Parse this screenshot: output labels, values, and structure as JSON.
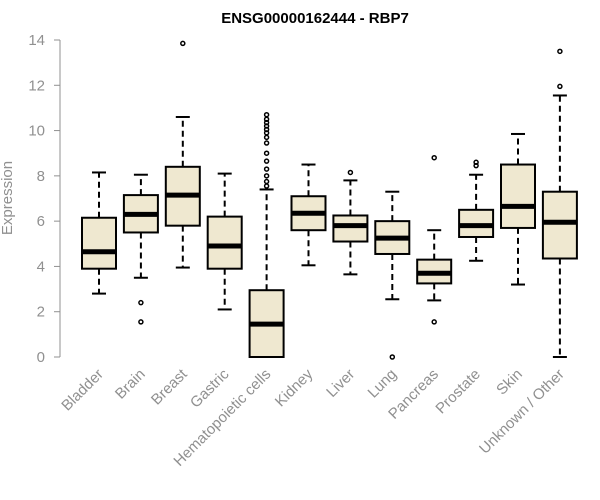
{
  "chart_data": {
    "type": "boxplot",
    "title": "ENSG00000162444 - RBP7",
    "xlabel": "",
    "ylabel": "Expression",
    "ylim": [
      0,
      14
    ],
    "yticks": [
      "0",
      "2",
      "4",
      "6",
      "8",
      "10",
      "12",
      "14"
    ],
    "grid": false,
    "box_fill": "#EFE8D0",
    "categories": [
      "Bladder",
      "Brain",
      "Breast",
      "Gastric",
      "Hematopoietic cells",
      "Kidney",
      "Liver",
      "Lung",
      "Pancreas",
      "Prostate",
      "Skin",
      "Unknown / Other"
    ],
    "boxes": [
      {
        "category": "Bladder",
        "whisker_low": 2.8,
        "q1": 3.9,
        "median": 4.65,
        "q3": 6.15,
        "whisker_high": 8.15,
        "outliers": []
      },
      {
        "category": "Brain",
        "whisker_low": 3.5,
        "q1": 5.5,
        "median": 6.3,
        "q3": 7.15,
        "whisker_high": 8.05,
        "outliers": [
          2.4,
          1.55
        ]
      },
      {
        "category": "Breast",
        "whisker_low": 3.95,
        "q1": 5.8,
        "median": 7.15,
        "q3": 8.4,
        "whisker_high": 10.6,
        "outliers": [
          13.85
        ]
      },
      {
        "category": "Gastric",
        "whisker_low": 2.1,
        "q1": 3.9,
        "median": 4.9,
        "q3": 6.2,
        "whisker_high": 8.1,
        "outliers": []
      },
      {
        "category": "Hematopoietic cells",
        "whisker_low": 0,
        "q1": 0,
        "median": 1.45,
        "q3": 2.95,
        "whisker_high": 7.4,
        "outliers": [
          7.55,
          7.75,
          8.0,
          8.3,
          8.65,
          9.0,
          9.45,
          9.7,
          9.9,
          10.05,
          10.2,
          10.35,
          10.5,
          10.7
        ]
      },
      {
        "category": "Kidney",
        "whisker_low": 4.05,
        "q1": 5.6,
        "median": 6.35,
        "q3": 7.1,
        "whisker_high": 8.5,
        "outliers": []
      },
      {
        "category": "Liver",
        "whisker_low": 3.65,
        "q1": 5.1,
        "median": 5.8,
        "q3": 6.25,
        "whisker_high": 7.8,
        "outliers": [
          8.15
        ]
      },
      {
        "category": "Lung",
        "whisker_low": 2.55,
        "q1": 4.55,
        "median": 5.25,
        "q3": 6.0,
        "whisker_high": 7.3,
        "outliers": [
          0.0
        ]
      },
      {
        "category": "Pancreas",
        "whisker_low": 2.5,
        "q1": 3.25,
        "median": 3.7,
        "q3": 4.3,
        "whisker_high": 5.6,
        "outliers": [
          8.8,
          1.55
        ]
      },
      {
        "category": "Prostate",
        "whisker_low": 4.25,
        "q1": 5.3,
        "median": 5.8,
        "q3": 6.5,
        "whisker_high": 8.05,
        "outliers": [
          8.45,
          8.6
        ]
      },
      {
        "category": "Skin",
        "whisker_low": 3.2,
        "q1": 5.7,
        "median": 6.65,
        "q3": 8.5,
        "whisker_high": 9.85,
        "outliers": []
      },
      {
        "category": "Unknown / Other",
        "whisker_low": 0,
        "q1": 4.35,
        "median": 5.95,
        "q3": 7.3,
        "whisker_high": 11.55,
        "outliers": [
          11.95,
          13.5
        ]
      }
    ]
  }
}
